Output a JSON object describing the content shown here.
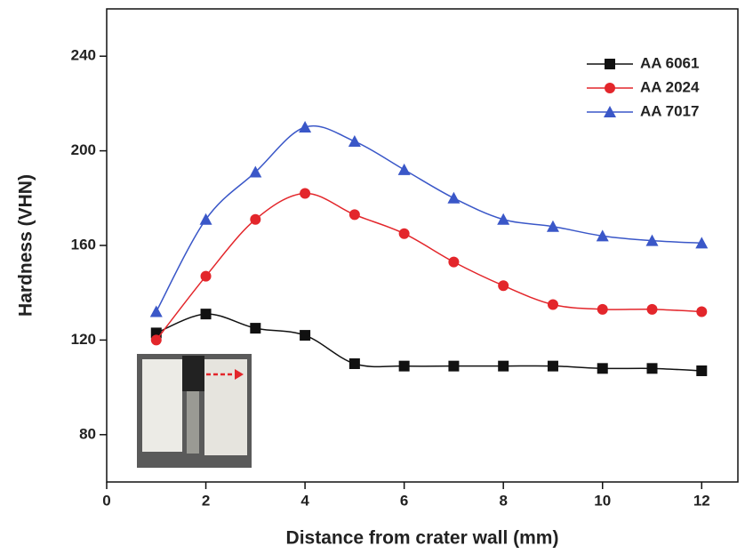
{
  "chart_data": {
    "type": "line",
    "x_label": "Distance from crater wall (mm)",
    "y_label": "Hardness (VHN)",
    "x": [
      1,
      2,
      3,
      4,
      5,
      6,
      7,
      8,
      9,
      10,
      11,
      12
    ],
    "series": [
      {
        "name": "AA 6061",
        "color": "#111111",
        "marker": "square",
        "values": [
          123,
          131,
          125,
          122,
          110,
          109,
          109,
          109,
          109,
          108,
          108,
          107
        ]
      },
      {
        "name": "AA 2024",
        "color": "#e3262b",
        "marker": "circle",
        "values": [
          120,
          147,
          171,
          182,
          173,
          165,
          153,
          143,
          135,
          133,
          133,
          132
        ]
      },
      {
        "name": "AA 7017",
        "color": "#3a57c8",
        "marker": "triangle",
        "values": [
          132,
          171,
          191,
          210,
          204,
          192,
          180,
          171,
          168,
          164,
          162,
          161
        ]
      }
    ],
    "xlim": [
      0,
      12.73
    ],
    "xticks": [
      0,
      2,
      4,
      6,
      8,
      10,
      12
    ],
    "ylim": [
      60,
      260
    ],
    "yticks": [
      80,
      120,
      160,
      200,
      240
    ],
    "legend": "top-right"
  }
}
